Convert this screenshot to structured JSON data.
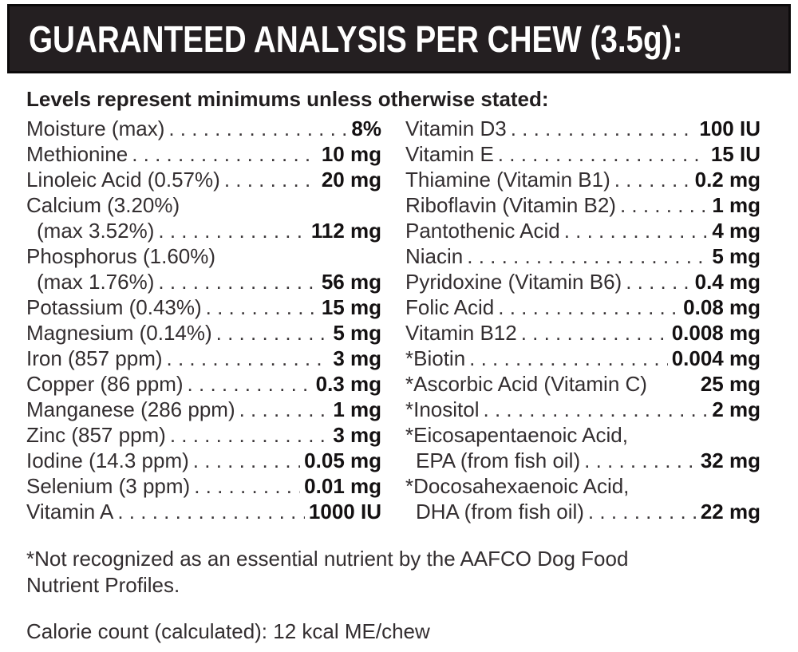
{
  "header": {
    "title": "GUARANTEED ANALYSIS PER CHEW (3.5g):",
    "bg_color": "#241f21",
    "text_color": "#ffffff"
  },
  "subheader": "Levels represent minimums unless otherwise stated:",
  "columns": {
    "left": [
      {
        "name": "Moisture (max)",
        "value": "8%",
        "dots": true,
        "indent": false
      },
      {
        "name": "Methionine",
        "value": "10 mg",
        "dots": true,
        "indent": false
      },
      {
        "name": "Linoleic Acid (0.57%)",
        "value": "20 mg",
        "dots": true,
        "indent": false
      },
      {
        "name": "Calcium (3.20%)",
        "value": "",
        "dots": false,
        "indent": false
      },
      {
        "name": "(max 3.52%)",
        "value": "112 mg",
        "dots": true,
        "indent": true
      },
      {
        "name": "Phosphorus (1.60%)",
        "value": "",
        "dots": false,
        "indent": false
      },
      {
        "name": "(max 1.76%)",
        "value": "56 mg",
        "dots": true,
        "indent": true
      },
      {
        "name": "Potassium (0.43%)",
        "value": "15 mg",
        "dots": true,
        "indent": false
      },
      {
        "name": "Magnesium (0.14%)",
        "value": "5 mg",
        "dots": true,
        "indent": false
      },
      {
        "name": "Iron (857 ppm)",
        "value": "3 mg",
        "dots": true,
        "indent": false
      },
      {
        "name": "Copper (86 ppm)",
        "value": "0.3 mg",
        "dots": true,
        "indent": false
      },
      {
        "name": "Manganese (286 ppm)",
        "value": "1 mg",
        "dots": true,
        "indent": false
      },
      {
        "name": "Zinc (857 ppm)",
        "value": "3 mg",
        "dots": true,
        "indent": false
      },
      {
        "name": "Iodine (14.3 ppm)",
        "value": "0.05 mg",
        "dots": true,
        "indent": false
      },
      {
        "name": "Selenium (3 ppm)",
        "value": "0.01 mg",
        "dots": true,
        "indent": false
      },
      {
        "name": "Vitamin A",
        "value": "1000 IU",
        "dots": true,
        "indent": false
      }
    ],
    "right": [
      {
        "name": "Vitamin D3",
        "value": "100 IU",
        "dots": true,
        "indent": false
      },
      {
        "name": "Vitamin E",
        "value": "15 IU",
        "dots": true,
        "indent": false
      },
      {
        "name": "Thiamine (Vitamin B1)",
        "value": "0.2 mg",
        "dots": true,
        "indent": false
      },
      {
        "name": "Riboflavin (Vitamin B2)",
        "value": "1 mg",
        "dots": true,
        "indent": false
      },
      {
        "name": "Pantothenic Acid",
        "value": "4 mg",
        "dots": true,
        "indent": false
      },
      {
        "name": "Niacin",
        "value": "5 mg",
        "dots": true,
        "indent": false
      },
      {
        "name": "Pyridoxine (Vitamin B6)",
        "value": "0.4 mg",
        "dots": true,
        "indent": false
      },
      {
        "name": "Folic Acid",
        "value": "0.08 mg",
        "dots": true,
        "indent": false
      },
      {
        "name": "Vitamin B12",
        "value": "0.008 mg",
        "dots": true,
        "indent": false
      },
      {
        "name": "*Biotin",
        "value": "0.004 mg",
        "dots": true,
        "indent": false
      },
      {
        "name": "*Ascorbic Acid (Vitamin C)",
        "value": "25 mg",
        "dots": false,
        "indent": false
      },
      {
        "name": "*Inositol",
        "value": "2 mg",
        "dots": true,
        "indent": false
      },
      {
        "name": "*Eicosapentaenoic Acid,",
        "value": "",
        "dots": false,
        "indent": false
      },
      {
        "name": "EPA (from fish oil)",
        "value": "32 mg",
        "dots": true,
        "indent": true
      },
      {
        "name": "*Docosahexaenoic Acid,",
        "value": "",
        "dots": false,
        "indent": false
      },
      {
        "name": "DHA (from fish oil)",
        "value": "22 mg",
        "dots": true,
        "indent": true
      }
    ]
  },
  "footnote": {
    "line1": "*Not recognized as an essential nutrient by the AAFCO Dog Food",
    "line2": "Nutrient Profiles."
  },
  "calorie_note": "Calorie count (calculated): 12 kcal ME/chew"
}
